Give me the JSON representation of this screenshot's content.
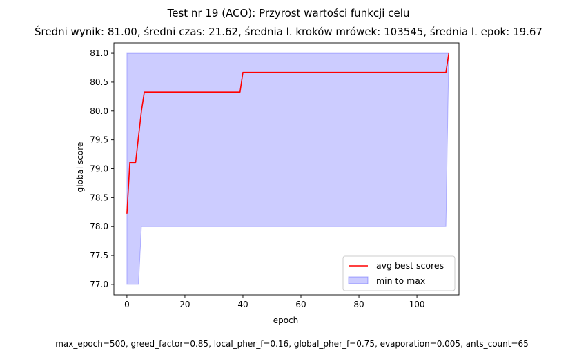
{
  "title": "Test nr 19 (ACO): Przyrost wartości funkcji celu",
  "subtitle": "Średni wynik: 81.00, średni czas: 21.62, średnia l. kroków mrówek: 103545, średnia l. epok: 19.67",
  "footer": "max_epoch=500, greed_factor=0.85, local_pher_f=0.16, global_pher_f=0.75, evaporation=0.005, ants_count=65",
  "chart_data": {
    "type": "line",
    "xlabel": "epoch",
    "ylabel": "global score",
    "xlim": [
      -4.5,
      114.5
    ],
    "ylim": [
      76.82,
      81.18
    ],
    "xticks": [
      "0",
      "20",
      "40",
      "60",
      "80",
      "100"
    ],
    "yticks": [
      "77.0",
      "77.5",
      "78.0",
      "78.5",
      "79.0",
      "79.5",
      "80.0",
      "80.5",
      "81.0"
    ],
    "legend_location": "lower right",
    "series": [
      {
        "name": "avg best scores",
        "color": "#ff0000",
        "x": [
          0,
          1,
          2,
          3,
          4,
          5,
          6,
          39,
          40,
          110,
          111
        ],
        "y": [
          78.22,
          79.11,
          79.11,
          79.11,
          79.56,
          80.0,
          80.33,
          80.33,
          80.67,
          80.67,
          81.0
        ]
      }
    ],
    "band": {
      "name": "min to max",
      "color": "#0000ff",
      "opacity": 0.2,
      "x": [
        0,
        1,
        2,
        3,
        4,
        5,
        110,
        111
      ],
      "min": [
        77.0,
        77.0,
        77.0,
        77.0,
        77.0,
        78.0,
        78.0,
        81.0
      ],
      "max": [
        81.0,
        81.0,
        81.0,
        81.0,
        81.0,
        81.0,
        81.0,
        81.0
      ]
    }
  }
}
